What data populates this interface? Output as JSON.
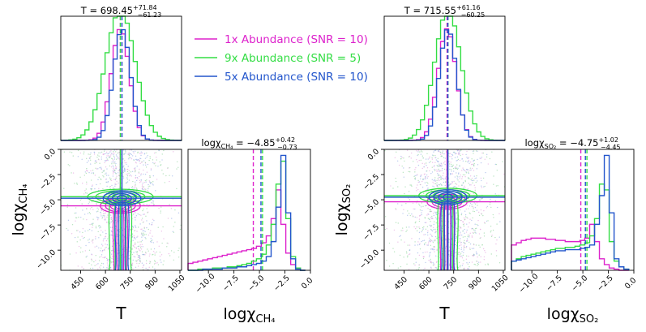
{
  "legend": {
    "placement": "top-center",
    "entries": [
      {
        "label": "1x Abundance (SNR = 10)",
        "color": "#dd22cc"
      },
      {
        "label": "9x Abundance (SNR = 5)",
        "color": "#33dd44"
      },
      {
        "label": "5x Abundance (SNR = 10)",
        "color": "#2255cc"
      }
    ]
  },
  "chart_data": [
    {
      "type": "corner",
      "name": "CH4 retrieval",
      "titles": {
        "T": {
          "prefix": "T = ",
          "median": "698.45",
          "plus": "+71.84",
          "minus": "−61.23"
        },
        "log": {
          "prefix": "logχ",
          "sub": "CH₄",
          "median": " = −4.85",
          "plus": "+0.42",
          "minus": "−0.73"
        }
      },
      "xlabel_T": "T",
      "xlabel_log": {
        "main": "logχ",
        "sub": "CH₄"
      },
      "ylabel_log": {
        "main": "logχ",
        "sub": "CH₄"
      },
      "T_range": [
        330,
        1060
      ],
      "T_ticks": [
        450,
        600,
        750,
        900,
        1050
      ],
      "T_ticklabels": [
        "450",
        "600",
        "750",
        "900",
        "1050"
      ],
      "log_range": [
        -12,
        0
      ],
      "log_ticks": [
        -10,
        -7.5,
        -5,
        -2.5,
        0
      ],
      "log_ticklabels": [
        "−10.0",
        "−7.5",
        "−5.0",
        "−2.5",
        "0.0"
      ],
      "series": [
        {
          "name": "1x Abundance (SNR = 10)",
          "color": "#dd22cc",
          "T_median": 690,
          "T_sigma": 55,
          "log_median": -5.6,
          "log_1d": [
            0.06,
            0.07,
            0.08,
            0.09,
            0.1,
            0.11,
            0.12,
            0.13,
            0.14,
            0.15,
            0.16,
            0.17,
            0.18,
            0.19,
            0.21,
            0.24,
            0.3,
            0.45,
            0.7,
            0.4,
            0.15,
            0.05,
            0.02,
            0.0
          ]
        },
        {
          "name": "9x Abundance (SNR = 5)",
          "color": "#33dd44",
          "T_median": 690,
          "T_sigma": 90,
          "log_median": -4.7,
          "log_1d": [
            0.0,
            0.0,
            0.01,
            0.01,
            0.01,
            0.02,
            0.02,
            0.02,
            0.03,
            0.03,
            0.04,
            0.05,
            0.06,
            0.08,
            0.1,
            0.14,
            0.22,
            0.4,
            0.75,
            0.95,
            0.45,
            0.12,
            0.02,
            0.0
          ]
        },
        {
          "name": "5x Abundance (SNR = 10)",
          "color": "#2255cc",
          "T_median": 700,
          "T_sigma": 52,
          "log_median": -4.85,
          "log_1d": [
            0.0,
            0.0,
            0.0,
            0.01,
            0.01,
            0.01,
            0.01,
            0.02,
            0.02,
            0.02,
            0.03,
            0.03,
            0.04,
            0.05,
            0.06,
            0.08,
            0.12,
            0.25,
            0.55,
            1.0,
            0.5,
            0.1,
            0.01,
            0.0
          ]
        }
      ]
    },
    {
      "type": "corner",
      "name": "SO2 retrieval",
      "titles": {
        "T": {
          "prefix": "T = ",
          "median": "715.55",
          "plus": "+61.16",
          "minus": "−60.25"
        },
        "log": {
          "prefix": "logχ",
          "sub": "SO₂",
          "median": " = −4.75",
          "plus": "+1.02",
          "minus": "−4.45"
        }
      },
      "xlabel_T": "T",
      "xlabel_log": {
        "main": "logχ",
        "sub": "SO₂"
      },
      "ylabel_log": {
        "main": "logχ",
        "sub": "SO₂"
      },
      "T_range": [
        330,
        1060
      ],
      "T_ticks": [
        450,
        600,
        750,
        900,
        1050
      ],
      "T_ticklabels": [
        "450",
        "600",
        "750",
        "900",
        "1050"
      ],
      "log_range": [
        -12,
        0
      ],
      "log_ticks": [
        -10,
        -7.5,
        -5,
        -2.5,
        0
      ],
      "log_ticklabels": [
        "−10.0",
        "−7.5",
        "−5.0",
        "−2.5",
        "0.0"
      ],
      "series": [
        {
          "name": "1x Abundance (SNR = 10)",
          "color": "#dd22cc",
          "T_median": 710,
          "T_sigma": 55,
          "log_median": -5.2,
          "log_1d": [
            0.22,
            0.24,
            0.26,
            0.27,
            0.28,
            0.28,
            0.28,
            0.27,
            0.27,
            0.26,
            0.26,
            0.25,
            0.25,
            0.25,
            0.26,
            0.28,
            0.4,
            0.25,
            0.1,
            0.05,
            0.02,
            0.01,
            0.0,
            0.0
          ]
        },
        {
          "name": "9x Abundance (SNR = 5)",
          "color": "#33dd44",
          "T_median": 715,
          "T_sigma": 80,
          "log_median": -4.6,
          "log_1d": [
            0.08,
            0.1,
            0.12,
            0.13,
            0.14,
            0.15,
            0.16,
            0.17,
            0.18,
            0.19,
            0.19,
            0.2,
            0.2,
            0.21,
            0.22,
            0.24,
            0.3,
            0.45,
            0.75,
            0.7,
            0.25,
            0.08,
            0.03,
            0.01
          ]
        },
        {
          "name": "5x Abundance (SNR = 10)",
          "color": "#2255cc",
          "T_median": 715,
          "T_sigma": 52,
          "log_median": -4.75,
          "log_1d": [
            0.08,
            0.09,
            0.1,
            0.11,
            0.12,
            0.13,
            0.14,
            0.15,
            0.16,
            0.17,
            0.17,
            0.18,
            0.18,
            0.18,
            0.19,
            0.2,
            0.22,
            0.4,
            0.65,
            1.0,
            0.5,
            0.1,
            0.03,
            0.01
          ]
        }
      ]
    }
  ]
}
